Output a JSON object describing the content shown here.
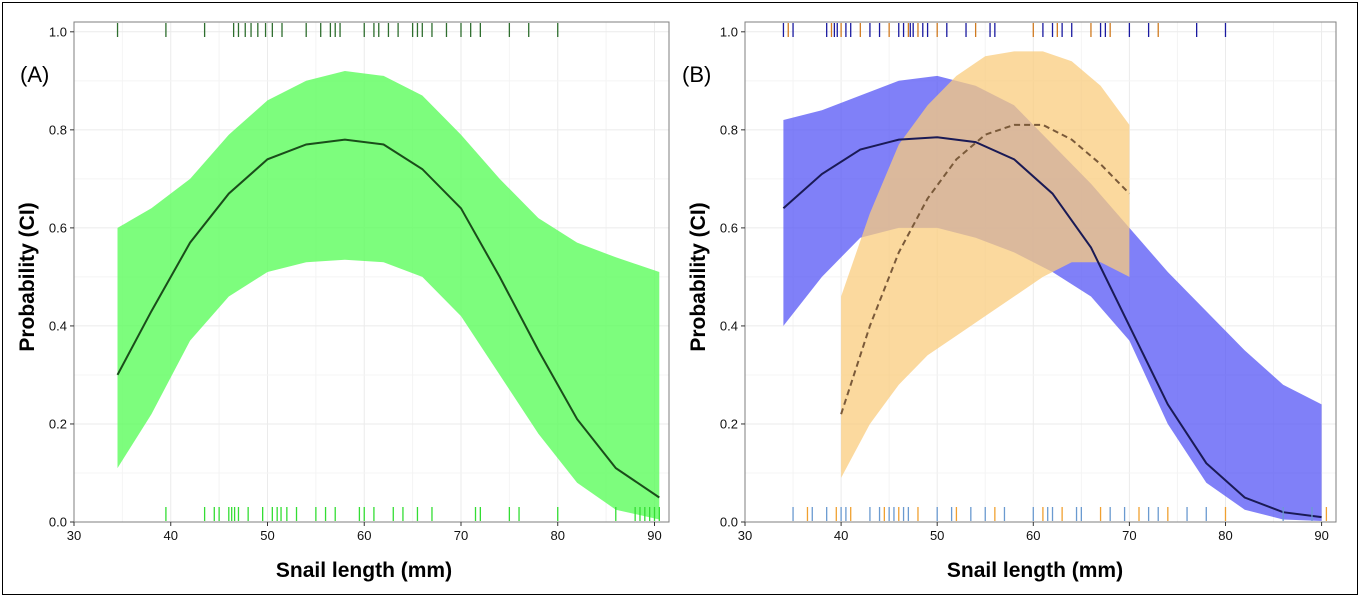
{
  "chart_data": [
    {
      "type": "line",
      "panel_label": "(A)",
      "xlabel": "Snail length (mm)",
      "ylabel": "Probability (CI)",
      "xlim": [
        30,
        91.5
      ],
      "ylim": [
        0,
        1.02
      ],
      "x_ticks": [
        "30",
        "40",
        "50",
        "60",
        "70",
        "80",
        "90"
      ],
      "y_ticks": [
        "0.0",
        "0.2",
        "0.4",
        "0.6",
        "0.8",
        "1.0"
      ],
      "grid": true,
      "series": [
        {
          "style": "solid",
          "color": "#1a4d1a",
          "band_color": "#5dfc5d",
          "x": [
            34.5,
            38,
            42,
            46,
            50,
            54,
            58,
            62,
            66,
            70,
            74,
            78,
            82,
            86,
            90.5
          ],
          "y": [
            0.3,
            0.43,
            0.57,
            0.67,
            0.74,
            0.77,
            0.78,
            0.77,
            0.72,
            0.64,
            0.5,
            0.35,
            0.21,
            0.11,
            0.05
          ],
          "lower": [
            0.11,
            0.22,
            0.37,
            0.46,
            0.51,
            0.53,
            0.535,
            0.53,
            0.5,
            0.42,
            0.3,
            0.18,
            0.08,
            0.025,
            0.005
          ],
          "upper": [
            0.6,
            0.64,
            0.7,
            0.79,
            0.86,
            0.9,
            0.92,
            0.91,
            0.87,
            0.79,
            0.7,
            0.62,
            0.57,
            0.54,
            0.51
          ]
        }
      ],
      "rug_top": {
        "color": "#2e6e2e",
        "x": [
          34.5,
          39.5,
          43.5,
          46.5,
          47,
          47.7,
          48.3,
          49,
          49.8,
          50.5,
          51.5,
          54,
          55.5,
          56.5,
          57,
          57.5,
          60,
          61,
          61.5,
          62.5,
          63.5,
          65,
          65.5,
          66,
          67,
          68.5,
          70,
          71,
          72,
          75,
          77,
          80
        ]
      },
      "rug_bottom": {
        "color": "#33dd33",
        "x": [
          39.5,
          43.5,
          44.5,
          45,
          46,
          46.3,
          46.6,
          47,
          48,
          49.5,
          50.5,
          51,
          51.4,
          52,
          53,
          55,
          56,
          57,
          59.5,
          60,
          61,
          63,
          64,
          65.5,
          67,
          71.5,
          72,
          75,
          76,
          80,
          86,
          88,
          88.5,
          89,
          89.5,
          90,
          90.5
        ]
      }
    },
    {
      "type": "line",
      "panel_label": "(B)",
      "xlabel": "Snail length (mm)",
      "ylabel": "Probability (CI)",
      "xlim": [
        30,
        91.5
      ],
      "ylim": [
        0,
        1.02
      ],
      "x_ticks": [
        "30",
        "40",
        "50",
        "60",
        "70",
        "80",
        "90"
      ],
      "y_ticks": [
        "0.0",
        "0.2",
        "0.4",
        "0.6",
        "0.8",
        "1.0"
      ],
      "grid": true,
      "series": [
        {
          "style": "solid",
          "color": "#1a1a55",
          "band_color": "#5555f5",
          "x": [
            34,
            38,
            42,
            46,
            50,
            54,
            58,
            62,
            66,
            70,
            74,
            78,
            82,
            86,
            90
          ],
          "y": [
            0.64,
            0.71,
            0.76,
            0.78,
            0.785,
            0.775,
            0.74,
            0.67,
            0.56,
            0.4,
            0.24,
            0.12,
            0.05,
            0.02,
            0.01
          ],
          "lower": [
            0.4,
            0.5,
            0.58,
            0.6,
            0.6,
            0.58,
            0.55,
            0.51,
            0.46,
            0.37,
            0.2,
            0.08,
            0.025,
            0.005,
            0.002
          ],
          "upper": [
            0.82,
            0.84,
            0.87,
            0.9,
            0.91,
            0.89,
            0.85,
            0.77,
            0.69,
            0.6,
            0.51,
            0.43,
            0.35,
            0.28,
            0.24
          ]
        },
        {
          "style": "dashed",
          "color": "#7a5a3a",
          "band_color": "#f9cc7e",
          "x": [
            40,
            43,
            46,
            49,
            52,
            55,
            58,
            61,
            64,
            67,
            70
          ],
          "y": [
            0.22,
            0.4,
            0.55,
            0.66,
            0.74,
            0.79,
            0.81,
            0.81,
            0.78,
            0.73,
            0.67
          ],
          "lower": [
            0.09,
            0.2,
            0.28,
            0.34,
            0.38,
            0.42,
            0.46,
            0.5,
            0.53,
            0.53,
            0.5
          ],
          "upper": [
            0.46,
            0.63,
            0.77,
            0.85,
            0.91,
            0.95,
            0.96,
            0.96,
            0.94,
            0.89,
            0.81
          ]
        }
      ],
      "rug_top": {
        "color": "#1a1aa0",
        "color_alt": "#d07a20",
        "x": [
          34,
          34.5,
          35,
          38.5,
          39,
          39.3,
          39.6,
          40,
          40.5,
          41,
          42,
          43,
          44,
          45,
          46,
          46.5,
          47,
          47.2,
          47.5,
          48,
          48.5,
          49,
          50,
          51,
          53,
          54,
          55.5,
          56,
          60,
          61,
          62,
          62.5,
          63,
          64,
          66,
          67,
          67.5,
          68,
          70,
          72,
          73,
          77,
          80
        ]
      },
      "rug_bottom": {
        "color": "#6a9ad0",
        "color_alt": "#f0a030",
        "x": [
          35,
          36.5,
          37,
          38.5,
          39.5,
          40,
          40.5,
          41,
          43,
          44,
          44.5,
          45,
          45.5,
          46,
          46.5,
          47,
          48,
          50,
          51.5,
          52,
          53.5,
          55,
          56,
          57,
          60,
          61,
          61.5,
          62,
          63,
          64.5,
          65,
          67,
          68,
          69.5,
          71,
          72,
          73,
          74,
          76,
          78,
          80,
          86,
          89,
          90.5
        ]
      }
    }
  ]
}
